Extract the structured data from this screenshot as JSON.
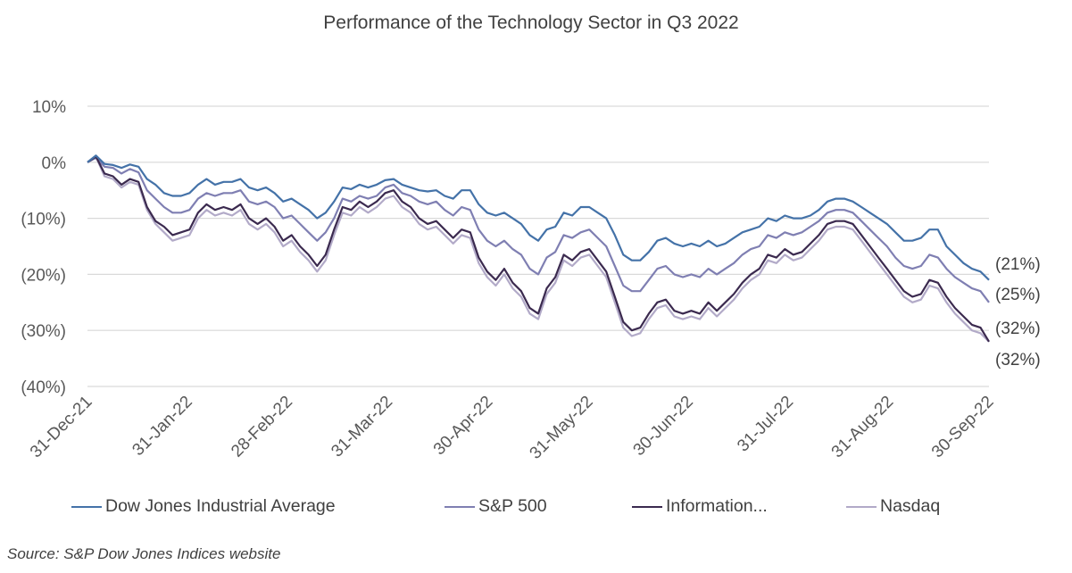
{
  "chart_data": {
    "type": "line",
    "title": "Performance of the Technology Sector in Q3 2022",
    "xlabel": "",
    "ylabel": "",
    "ylim": [
      -0.4,
      0.1
    ],
    "yticks": [
      {
        "value": 0.1,
        "label": "10%"
      },
      {
        "value": 0.0,
        "label": "0%"
      },
      {
        "value": -0.1,
        "label": "(10%)"
      },
      {
        "value": -0.2,
        "label": "(20%)"
      },
      {
        "value": -0.3,
        "label": "(30%)"
      },
      {
        "value": -0.4,
        "label": "(40%)"
      }
    ],
    "xticks": [
      "31-Dec-21",
      "31-Jan-22",
      "28-Feb-22",
      "31-Mar-22",
      "30-Apr-22",
      "31-May-22",
      "30-Jun-22",
      "31-Jul-22",
      "31-Aug-22",
      "30-Sep-22"
    ],
    "grid": "horizontal",
    "legend_position": "bottom",
    "end_labels": [
      "(21%)",
      "(25%)",
      "(32%)",
      "(32%)"
    ],
    "series": [
      {
        "name": "Dow Jones Industrial Average",
        "color": "#4472a8",
        "values": [
          0.0,
          0.012,
          -0.003,
          -0.005,
          -0.01,
          -0.004,
          -0.008,
          -0.03,
          -0.04,
          -0.055,
          -0.06,
          -0.06,
          -0.055,
          -0.04,
          -0.03,
          -0.04,
          -0.035,
          -0.035,
          -0.03,
          -0.045,
          -0.05,
          -0.045,
          -0.055,
          -0.07,
          -0.065,
          -0.075,
          -0.085,
          -0.1,
          -0.09,
          -0.07,
          -0.045,
          -0.048,
          -0.04,
          -0.045,
          -0.04,
          -0.032,
          -0.03,
          -0.04,
          -0.045,
          -0.05,
          -0.052,
          -0.05,
          -0.06,
          -0.065,
          -0.05,
          -0.05,
          -0.075,
          -0.09,
          -0.095,
          -0.09,
          -0.1,
          -0.11,
          -0.13,
          -0.14,
          -0.12,
          -0.115,
          -0.09,
          -0.095,
          -0.08,
          -0.08,
          -0.09,
          -0.1,
          -0.13,
          -0.165,
          -0.175,
          -0.175,
          -0.16,
          -0.14,
          -0.135,
          -0.145,
          -0.15,
          -0.145,
          -0.15,
          -0.14,
          -0.15,
          -0.145,
          -0.135,
          -0.125,
          -0.12,
          -0.115,
          -0.1,
          -0.105,
          -0.095,
          -0.1,
          -0.1,
          -0.095,
          -0.085,
          -0.07,
          -0.065,
          -0.065,
          -0.07,
          -0.08,
          -0.09,
          -0.1,
          -0.11,
          -0.125,
          -0.14,
          -0.14,
          -0.135,
          -0.12,
          -0.12,
          -0.15,
          -0.165,
          -0.18,
          -0.19,
          -0.195,
          -0.21
        ]
      },
      {
        "name": "S&P 500",
        "color": "#7f7fb2",
        "values": [
          0.0,
          0.008,
          -0.008,
          -0.01,
          -0.02,
          -0.012,
          -0.018,
          -0.05,
          -0.065,
          -0.08,
          -0.09,
          -0.09,
          -0.085,
          -0.065,
          -0.055,
          -0.06,
          -0.055,
          -0.055,
          -0.05,
          -0.07,
          -0.075,
          -0.07,
          -0.08,
          -0.1,
          -0.095,
          -0.11,
          -0.125,
          -0.14,
          -0.125,
          -0.1,
          -0.065,
          -0.07,
          -0.06,
          -0.065,
          -0.06,
          -0.045,
          -0.04,
          -0.055,
          -0.06,
          -0.07,
          -0.075,
          -0.07,
          -0.085,
          -0.095,
          -0.08,
          -0.085,
          -0.12,
          -0.14,
          -0.15,
          -0.14,
          -0.155,
          -0.165,
          -0.19,
          -0.2,
          -0.17,
          -0.16,
          -0.13,
          -0.135,
          -0.125,
          -0.12,
          -0.135,
          -0.15,
          -0.185,
          -0.22,
          -0.23,
          -0.23,
          -0.21,
          -0.19,
          -0.185,
          -0.2,
          -0.205,
          -0.2,
          -0.205,
          -0.19,
          -0.2,
          -0.19,
          -0.18,
          -0.165,
          -0.155,
          -0.15,
          -0.13,
          -0.135,
          -0.125,
          -0.13,
          -0.125,
          -0.115,
          -0.105,
          -0.09,
          -0.085,
          -0.085,
          -0.09,
          -0.105,
          -0.12,
          -0.135,
          -0.15,
          -0.17,
          -0.185,
          -0.19,
          -0.185,
          -0.165,
          -0.17,
          -0.19,
          -0.205,
          -0.215,
          -0.225,
          -0.23,
          -0.25
        ]
      },
      {
        "name": "Information...",
        "color": "#3b2a4f",
        "values": [
          0.0,
          0.01,
          -0.02,
          -0.025,
          -0.04,
          -0.03,
          -0.035,
          -0.08,
          -0.105,
          -0.115,
          -0.13,
          -0.125,
          -0.12,
          -0.09,
          -0.075,
          -0.085,
          -0.08,
          -0.085,
          -0.075,
          -0.1,
          -0.11,
          -0.1,
          -0.115,
          -0.14,
          -0.13,
          -0.15,
          -0.165,
          -0.185,
          -0.165,
          -0.12,
          -0.08,
          -0.085,
          -0.07,
          -0.08,
          -0.07,
          -0.055,
          -0.05,
          -0.07,
          -0.08,
          -0.1,
          -0.11,
          -0.105,
          -0.12,
          -0.135,
          -0.12,
          -0.125,
          -0.17,
          -0.195,
          -0.21,
          -0.19,
          -0.215,
          -0.23,
          -0.26,
          -0.27,
          -0.225,
          -0.205,
          -0.165,
          -0.175,
          -0.16,
          -0.155,
          -0.175,
          -0.195,
          -0.24,
          -0.285,
          -0.3,
          -0.295,
          -0.27,
          -0.25,
          -0.245,
          -0.265,
          -0.27,
          -0.265,
          -0.27,
          -0.25,
          -0.265,
          -0.25,
          -0.235,
          -0.215,
          -0.2,
          -0.19,
          -0.165,
          -0.17,
          -0.155,
          -0.165,
          -0.16,
          -0.145,
          -0.13,
          -0.11,
          -0.105,
          -0.105,
          -0.11,
          -0.13,
          -0.15,
          -0.17,
          -0.19,
          -0.21,
          -0.23,
          -0.24,
          -0.235,
          -0.21,
          -0.215,
          -0.24,
          -0.26,
          -0.275,
          -0.29,
          -0.295,
          -0.32
        ]
      },
      {
        "name": "Nasdaq",
        "color": "#b2aac8",
        "values": [
          0.0,
          0.01,
          -0.025,
          -0.03,
          -0.045,
          -0.035,
          -0.04,
          -0.085,
          -0.11,
          -0.125,
          -0.14,
          -0.135,
          -0.13,
          -0.1,
          -0.085,
          -0.095,
          -0.09,
          -0.095,
          -0.085,
          -0.11,
          -0.12,
          -0.11,
          -0.125,
          -0.15,
          -0.14,
          -0.16,
          -0.175,
          -0.195,
          -0.175,
          -0.13,
          -0.09,
          -0.095,
          -0.08,
          -0.09,
          -0.08,
          -0.065,
          -0.06,
          -0.08,
          -0.09,
          -0.11,
          -0.12,
          -0.115,
          -0.13,
          -0.145,
          -0.13,
          -0.135,
          -0.18,
          -0.205,
          -0.22,
          -0.2,
          -0.225,
          -0.24,
          -0.27,
          -0.28,
          -0.235,
          -0.215,
          -0.175,
          -0.185,
          -0.17,
          -0.165,
          -0.185,
          -0.205,
          -0.25,
          -0.295,
          -0.31,
          -0.305,
          -0.28,
          -0.26,
          -0.255,
          -0.275,
          -0.28,
          -0.275,
          -0.28,
          -0.26,
          -0.275,
          -0.26,
          -0.245,
          -0.225,
          -0.21,
          -0.2,
          -0.175,
          -0.18,
          -0.165,
          -0.175,
          -0.17,
          -0.155,
          -0.14,
          -0.12,
          -0.115,
          -0.115,
          -0.12,
          -0.14,
          -0.16,
          -0.18,
          -0.2,
          -0.22,
          -0.24,
          -0.25,
          -0.245,
          -0.22,
          -0.225,
          -0.25,
          -0.27,
          -0.285,
          -0.3,
          -0.305,
          -0.32
        ]
      }
    ]
  },
  "source_note": "Source: S&P Dow Jones Indices website"
}
